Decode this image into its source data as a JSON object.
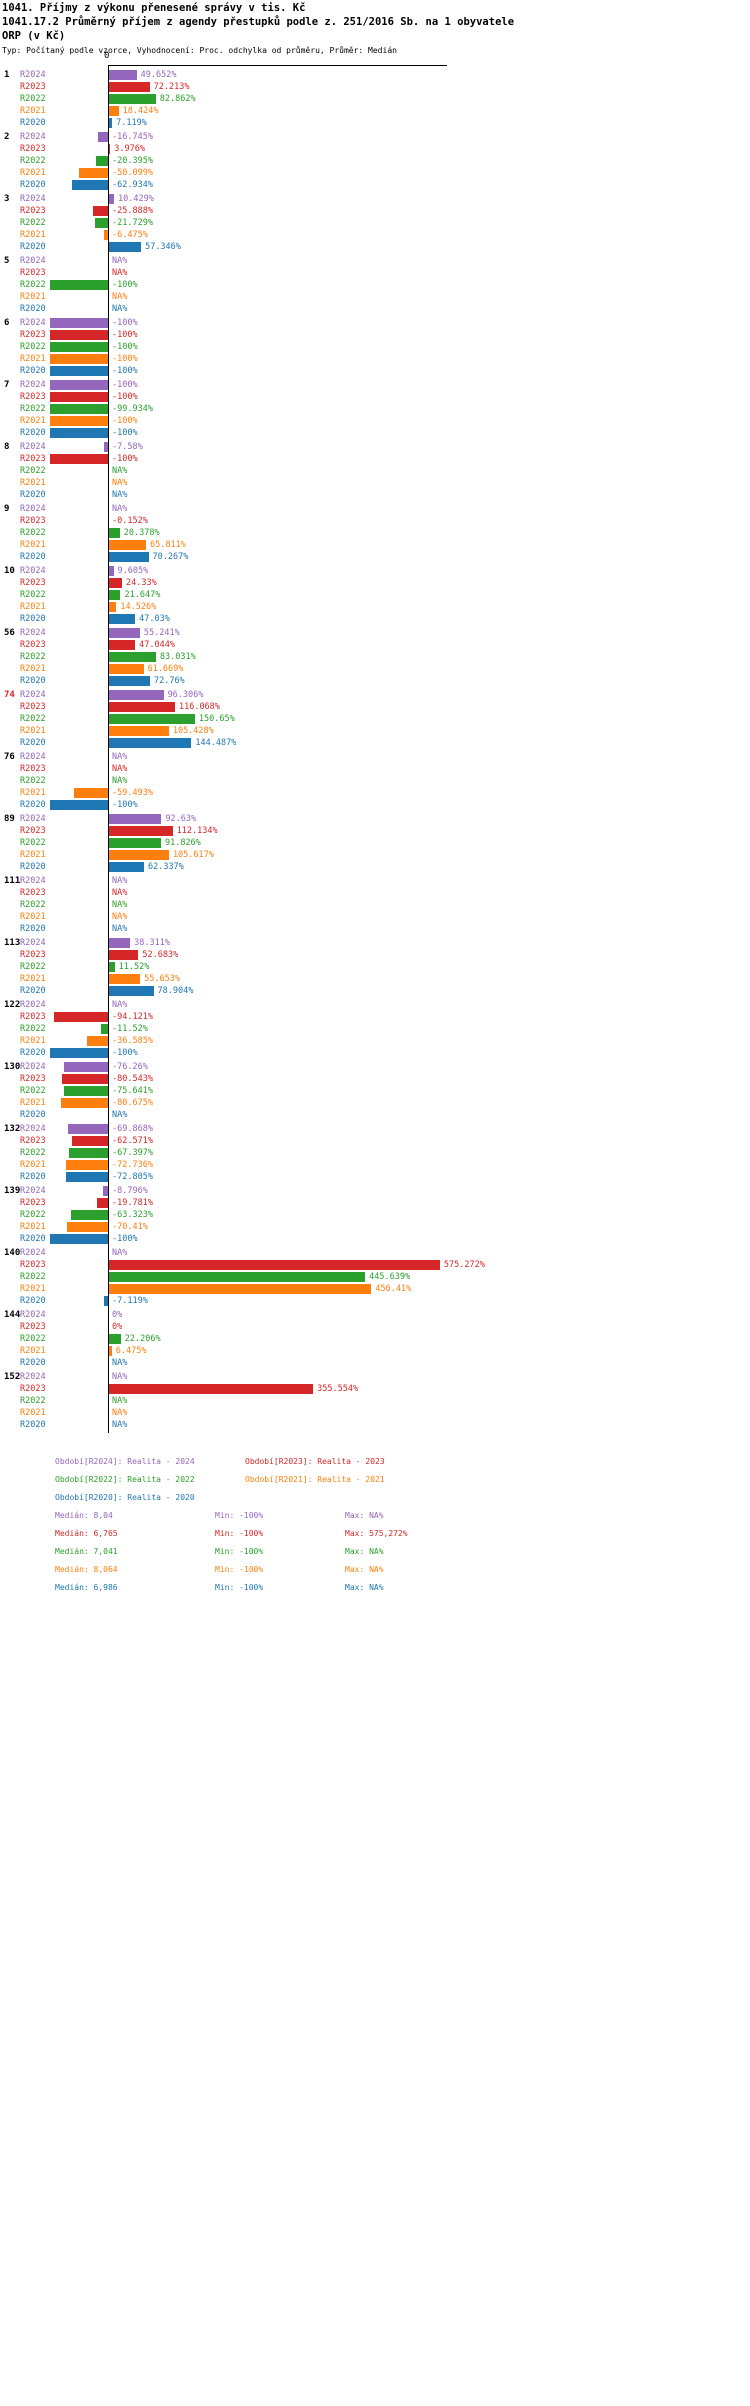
{
  "title": {
    "line1": "1041. Příjmy z výkonu přenesené správy v tis. Kč",
    "line2": "1041.17.2 Průměrný příjem z agendy přestupků podle z. 251/2016 Sb. na 1 obyvatele",
    "line3": "ORP (v Kč)",
    "type_line": "Typ: Počítaný podle vzorce, Vyhodnocení: Proc. odchylka od průměru, Průměr: Medián"
  },
  "chart_data": {
    "type": "bar",
    "orientation": "horizontal",
    "unit": "%",
    "value_axis": {
      "zero_tick": "0",
      "min": -100,
      "max": 575.272,
      "grid": false
    },
    "series_order": [
      "R2024",
      "R2023",
      "R2022",
      "R2021",
      "R2020"
    ],
    "series_colors": {
      "R2024": "#9467bd",
      "R2023": "#d62728",
      "R2022": "#2ca02c",
      "R2021": "#ff7f0e",
      "R2020": "#1f77b4"
    },
    "groups": [
      {
        "id": "1",
        "highlight": false,
        "values": [
          49.652,
          72.213,
          82.862,
          18.424,
          7.119
        ],
        "labels": [
          "49.652%",
          "72.213%",
          "82.862%",
          "18.424%",
          "7.119%"
        ]
      },
      {
        "id": "2",
        "highlight": false,
        "values": [
          -16.745,
          3.976,
          -20.395,
          -50.099,
          -62.934
        ],
        "labels": [
          "-16.745%",
          "3.976%",
          "-20.395%",
          "-50.099%",
          "-62.934%"
        ]
      },
      {
        "id": "3",
        "highlight": false,
        "values": [
          10.429,
          -25.888,
          -21.729,
          -6.475,
          57.346
        ],
        "labels": [
          "10.429%",
          "-25.888%",
          "-21.729%",
          "-6.475%",
          "57.346%"
        ]
      },
      {
        "id": "5",
        "highlight": false,
        "values": [
          null,
          null,
          -100,
          null,
          null
        ],
        "labels": [
          "NA%",
          "NA%",
          "-100%",
          "NA%",
          "NA%"
        ]
      },
      {
        "id": "6",
        "highlight": false,
        "values": [
          -100,
          -100,
          -100,
          -100,
          -100
        ],
        "labels": [
          "-100%",
          "-100%",
          "-100%",
          "-100%",
          "-100%"
        ]
      },
      {
        "id": "7",
        "highlight": false,
        "values": [
          -100,
          -100,
          -99.934,
          -100,
          -100
        ],
        "labels": [
          "-100%",
          "-100%",
          "-99.934%",
          "-100%",
          "-100%"
        ]
      },
      {
        "id": "8",
        "highlight": false,
        "values": [
          -7.58,
          -100,
          null,
          null,
          null
        ],
        "labels": [
          "-7.58%",
          "-100%",
          "NA%",
          "NA%",
          "NA%"
        ]
      },
      {
        "id": "9",
        "highlight": false,
        "values": [
          null,
          -0.152,
          20.378,
          65.811,
          70.267
        ],
        "labels": [
          "NA%",
          "-0.152%",
          "20.378%",
          "65.811%",
          "70.267%"
        ]
      },
      {
        "id": "10",
        "highlight": false,
        "values": [
          9.605,
          24.33,
          21.647,
          14.526,
          47.03
        ],
        "labels": [
          "9.605%",
          "24.33%",
          "21.647%",
          "14.526%",
          "47.03%"
        ]
      },
      {
        "id": "56",
        "highlight": false,
        "values": [
          55.241,
          47.044,
          83.031,
          61.669,
          72.76
        ],
        "labels": [
          "55.241%",
          "47.044%",
          "83.031%",
          "61.669%",
          "72.76%"
        ]
      },
      {
        "id": "74",
        "highlight": true,
        "values": [
          96.306,
          116.068,
          150.65,
          105.428,
          144.487
        ],
        "labels": [
          "96.306%",
          "116.068%",
          "150.65%",
          "105.428%",
          "144.487%"
        ]
      },
      {
        "id": "76",
        "highlight": false,
        "values": [
          null,
          null,
          null,
          -59.493,
          -100
        ],
        "labels": [
          "NA%",
          "NA%",
          "NA%",
          "-59.493%",
          "-100%"
        ]
      },
      {
        "id": "89",
        "highlight": false,
        "values": [
          92.63,
          112.134,
          91.826,
          105.617,
          62.337
        ],
        "labels": [
          "92.63%",
          "112.134%",
          "91.826%",
          "105.617%",
          "62.337%"
        ]
      },
      {
        "id": "111",
        "highlight": false,
        "values": [
          null,
          null,
          null,
          null,
          null
        ],
        "labels": [
          "NA%",
          "NA%",
          "NA%",
          "NA%",
          "NA%"
        ]
      },
      {
        "id": "113",
        "highlight": false,
        "values": [
          38.311,
          52.683,
          11.52,
          55.653,
          78.904
        ],
        "labels": [
          "38.311%",
          "52.683%",
          "11.52%",
          "55.653%",
          "78.904%"
        ]
      },
      {
        "id": "122",
        "highlight": false,
        "values": [
          null,
          -94.121,
          -11.52,
          -36.585,
          -100
        ],
        "labels": [
          "NA%",
          "-94.121%",
          "-11.52%",
          "-36.585%",
          "-100%"
        ]
      },
      {
        "id": "130",
        "highlight": false,
        "values": [
          -76.26,
          -80.543,
          -75.641,
          -80.675,
          null
        ],
        "labels": [
          "-76.26%",
          "-80.543%",
          "-75.641%",
          "-80.675%",
          "NA%"
        ]
      },
      {
        "id": "132",
        "highlight": false,
        "values": [
          -69.868,
          -62.571,
          -67.397,
          -72.736,
          -72.805
        ],
        "labels": [
          "-69.868%",
          "-62.571%",
          "-67.397%",
          "-72.736%",
          "-72.805%"
        ]
      },
      {
        "id": "139",
        "highlight": false,
        "values": [
          -8.796,
          -19.781,
          -63.323,
          -70.41,
          -100
        ],
        "labels": [
          "-8.796%",
          "-19.781%",
          "-63.323%",
          "-70.41%",
          "-100%"
        ]
      },
      {
        "id": "140",
        "highlight": false,
        "values": [
          null,
          575.272,
          445.639,
          456.41,
          -7.119
        ],
        "labels": [
          "NA%",
          "575.272%",
          "445.639%",
          "456.41%",
          "-7.119%"
        ]
      },
      {
        "id": "144",
        "highlight": false,
        "values": [
          0,
          0,
          22.206,
          6.475,
          null
        ],
        "labels": [
          "0%",
          "0%",
          "22.206%",
          "6.475%",
          "NA%"
        ]
      },
      {
        "id": "152",
        "highlight": false,
        "values": [
          null,
          355.554,
          null,
          null,
          null
        ],
        "labels": [
          "NA%",
          "355.554%",
          "NA%",
          "NA%",
          "NA%"
        ]
      }
    ]
  },
  "legend": {
    "items": [
      {
        "label": "Období[R2024]: Realita - 2024",
        "color": "#9467bd"
      },
      {
        "label": "Období[R2023]: Realita - 2023",
        "color": "#d62728"
      },
      {
        "label": "Období[R2022]: Realita - 2022",
        "color": "#2ca02c"
      },
      {
        "label": "Období[R2021]: Realita - 2021",
        "color": "#ff7f0e"
      },
      {
        "label": "Období[R2020]: Realita - 2020",
        "color": "#1f77b4"
      }
    ]
  },
  "stats": [
    {
      "median": "Medián: 8,04",
      "min": "Min: -100%",
      "max": "Max: NA%",
      "color": "#9467bd"
    },
    {
      "median": "Medián: 6,765",
      "min": "Min: -100%",
      "max": "Max: 575,272%",
      "color": "#d62728"
    },
    {
      "median": "Medián: 7,041",
      "min": "Min: -100%",
      "max": "Max: NA%",
      "color": "#2ca02c"
    },
    {
      "median": "Medián: 8,064",
      "min": "Min: -100%",
      "max": "Max: NA%",
      "color": "#ff7f0e"
    },
    {
      "median": "Medián: 6,986",
      "min": "Min: -100%",
      "max": "Max: NA%",
      "color": "#1f77b4"
    }
  ]
}
